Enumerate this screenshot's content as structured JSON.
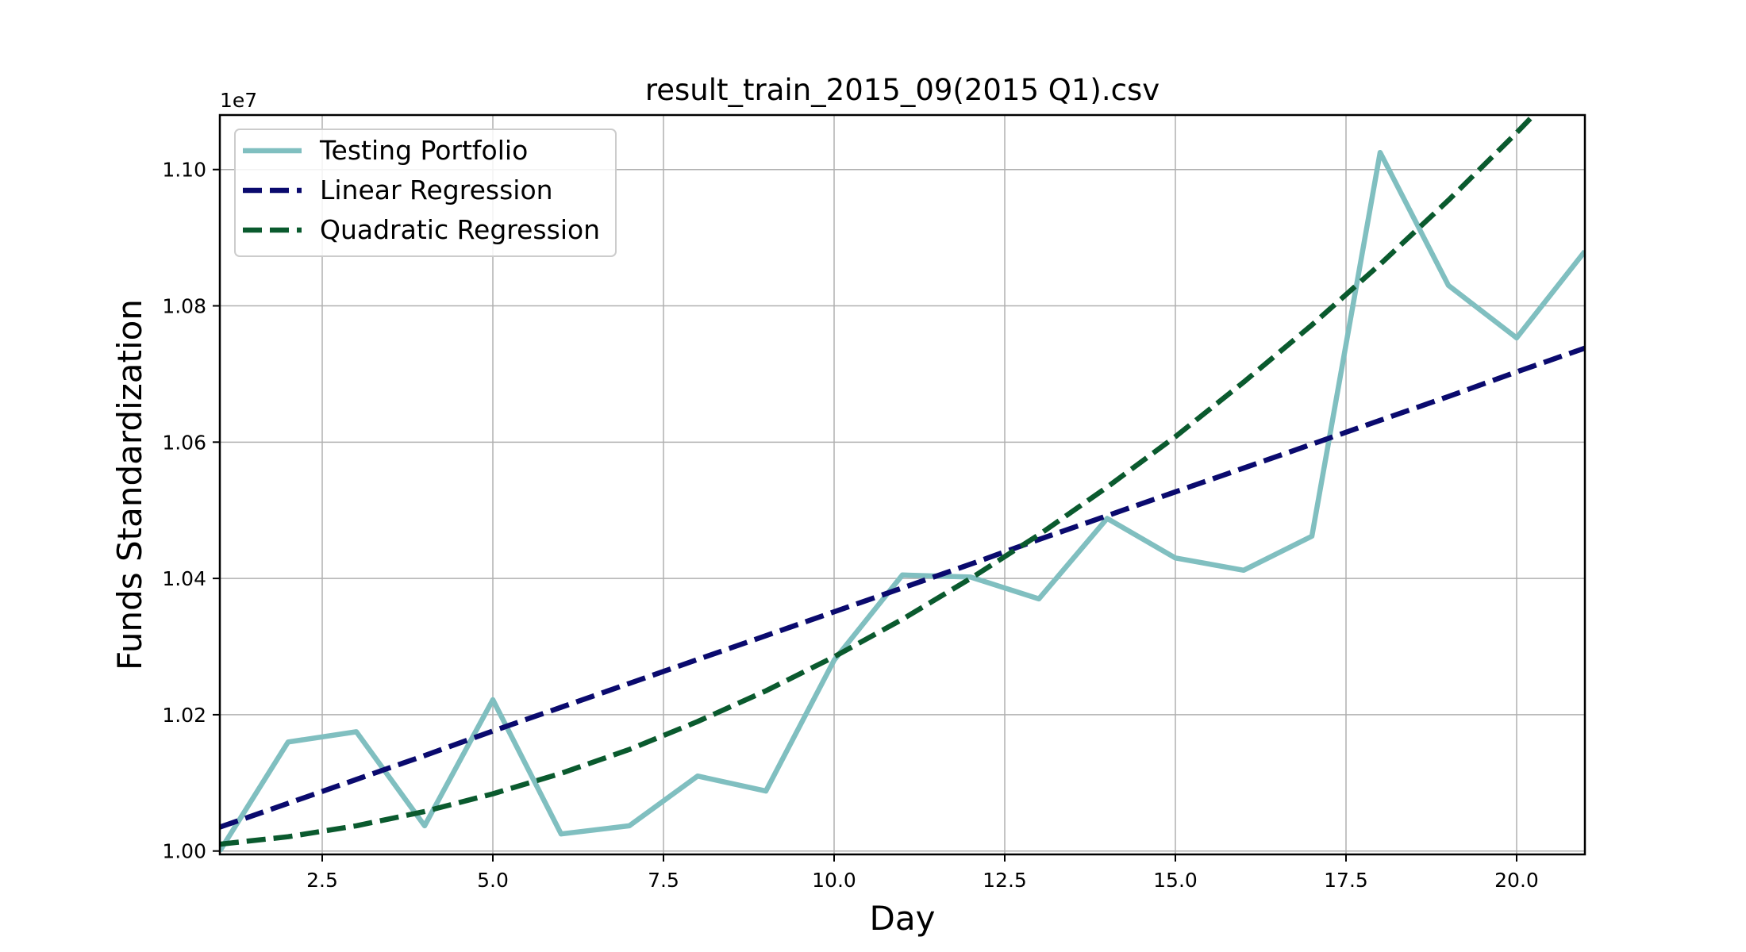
{
  "chart_data": {
    "type": "line",
    "title": "result_train_2015_09(2015 Q1).csv",
    "xlabel": "Day",
    "ylabel": "Funds Standardization",
    "y_offset_label": "1e7",
    "xlim": [
      1,
      21
    ],
    "ylim": [
      0.9995,
      1.108
    ],
    "xticks": [
      2.5,
      5.0,
      7.5,
      10.0,
      12.5,
      15.0,
      17.5,
      20.0
    ],
    "xtick_labels": [
      "2.5",
      "5.0",
      "7.5",
      "10.0",
      "12.5",
      "15.0",
      "17.5",
      "20.0"
    ],
    "yticks": [
      1.0,
      1.02,
      1.04,
      1.06,
      1.08,
      1.1
    ],
    "ytick_labels": [
      "1.00",
      "1.02",
      "1.04",
      "1.06",
      "1.08",
      "1.10"
    ],
    "grid": true,
    "legend_position": "top-left",
    "x": [
      1,
      2,
      3,
      4,
      5,
      6,
      7,
      8,
      9,
      10,
      11,
      12,
      13,
      14,
      15,
      16,
      17,
      18,
      19,
      20,
      21
    ],
    "series": [
      {
        "name": "Testing Portfolio",
        "style": "solid",
        "color": "#80bfc0",
        "values": [
          1.0,
          1.016,
          1.0175,
          1.0037,
          1.0222,
          1.0025,
          1.0037,
          1.011,
          1.0088,
          1.028,
          1.0405,
          1.0402,
          1.037,
          1.0488,
          1.043,
          1.0412,
          1.0462,
          1.1025,
          1.083,
          1.0753,
          1.088
        ]
      },
      {
        "name": "Linear Regression",
        "style": "dashed",
        "color": "#0a0a6e",
        "values": [
          1.0035,
          1.007,
          1.0105,
          1.014,
          1.0176,
          1.0211,
          1.0246,
          1.0281,
          1.0316,
          1.0351,
          1.0386,
          1.0421,
          1.0457,
          1.0492,
          1.0527,
          1.0562,
          1.0597,
          1.0632,
          1.0667,
          1.0703,
          1.0738
        ]
      },
      {
        "name": "Quadratic Regression",
        "style": "dashed",
        "color": "#0a5a2e",
        "values": [
          1.001,
          1.0021,
          1.0037,
          1.0058,
          1.0084,
          1.0114,
          1.0149,
          1.019,
          1.0235,
          1.0285,
          1.034,
          1.04,
          1.0464,
          1.0534,
          1.0608,
          1.0688,
          1.0772,
          1.0861,
          1.0955,
          1.1054,
          1.1158
        ]
      }
    ]
  }
}
